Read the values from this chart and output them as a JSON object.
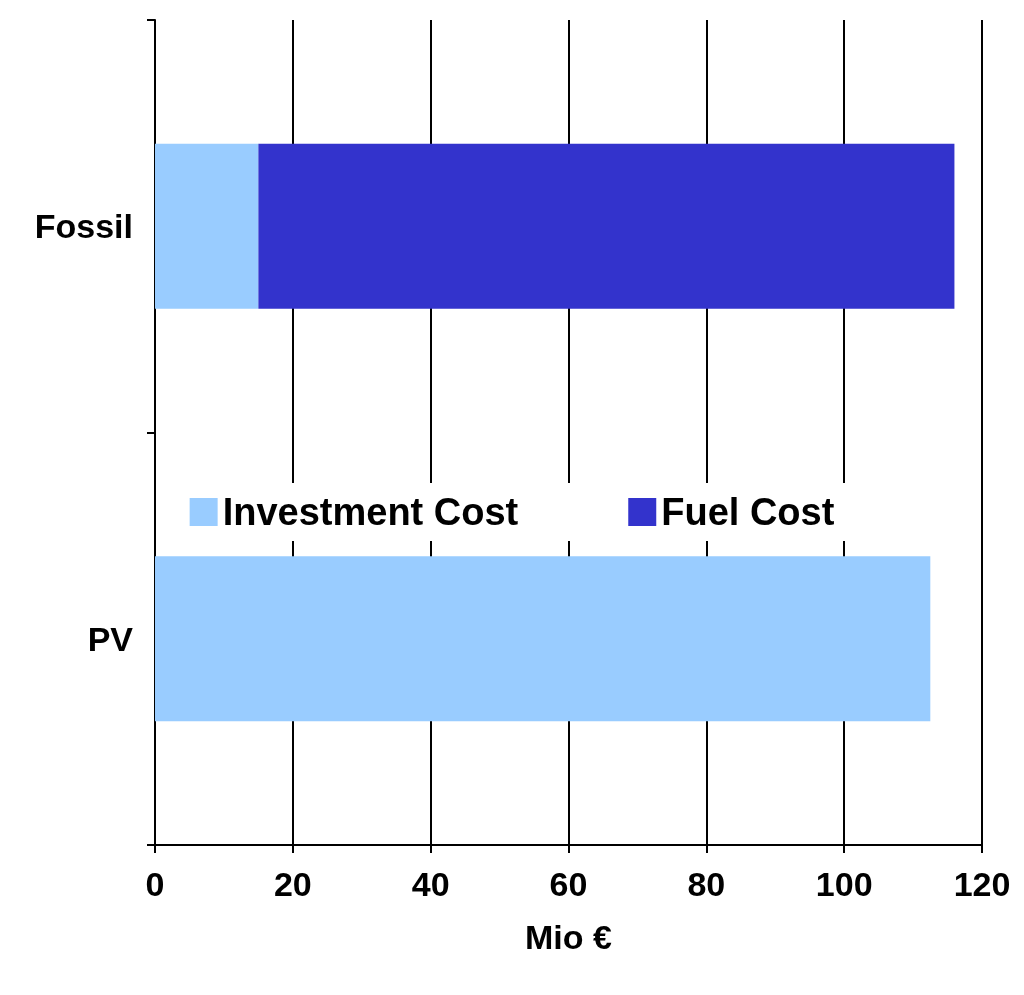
{
  "chart_data": {
    "type": "bar",
    "orientation": "horizontal",
    "stacked": true,
    "categories": [
      "Fossil",
      "PV"
    ],
    "xlabel": "Mio €",
    "series": [
      {
        "name": "Investment Cost",
        "color": "#99ccff",
        "values": [
          15,
          112.5
        ]
      },
      {
        "name": "Fuel Cost",
        "color": "#3333cc",
        "values": [
          101,
          null
        ]
      }
    ],
    "xlim": [
      0,
      120
    ],
    "xticks": [
      0,
      20,
      40,
      60,
      80,
      100,
      120
    ],
    "grid": "x",
    "legend": "center"
  }
}
